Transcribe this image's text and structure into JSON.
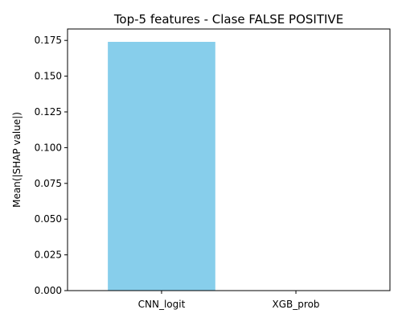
{
  "chart_data": {
    "type": "bar",
    "title": "Top-5 features - Clase FALSE POSITIVE",
    "xlabel": "",
    "ylabel": "Mean(|SHAP value|)",
    "categories": [
      "CNN_logit",
      "XGB_prob"
    ],
    "values": [
      0.174,
      0.0
    ],
    "ylim": [
      0,
      0.183
    ],
    "yticks": [
      "0.000",
      "0.025",
      "0.050",
      "0.075",
      "0.100",
      "0.125",
      "0.150",
      "0.175"
    ],
    "bar_color": "#87CEEB",
    "grid": false,
    "legend": "none"
  }
}
